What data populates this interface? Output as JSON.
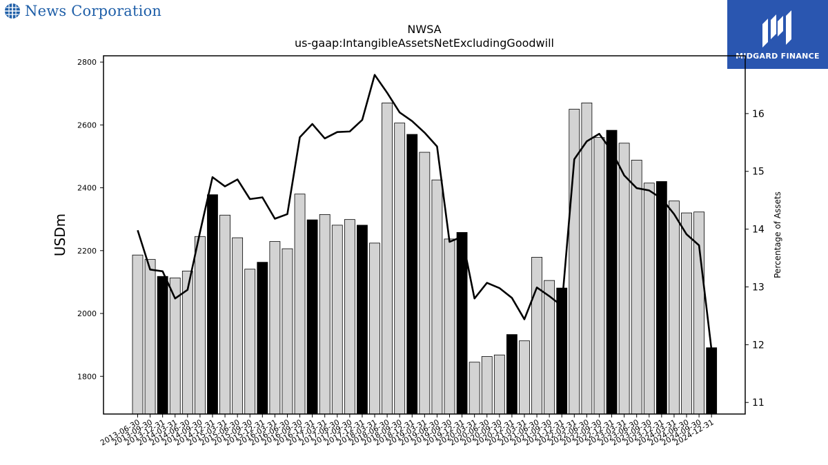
{
  "header": {
    "company_logo_text": "News Corporation",
    "brand_logo_text": "MIDGARD FINANCE"
  },
  "colors": {
    "bar_default": "#d3d3d3",
    "bar_q4": "#000000",
    "line": "#000000",
    "logo_blue": "#1f5fa8",
    "brand_bg": "#2a56b0"
  },
  "chart_data": {
    "type": "bar",
    "title": "NWSA",
    "subtitle": "us-gaap:IntangibleAssetsNetExcludingGoodwill",
    "ylabel": "USDm",
    "y2label": "Percentage of Assets",
    "ylim": [
      1680,
      2820
    ],
    "y2lim": [
      10.8,
      17.0
    ],
    "yticks": [
      1800,
      2000,
      2200,
      2400,
      2600,
      2800
    ],
    "y2ticks": [
      11,
      12,
      13,
      14,
      15,
      16
    ],
    "categories": [
      "2013-06-30",
      "2013-09-30",
      "2013-12-31",
      "2014-03-31",
      "2014-06-30",
      "2014-09-30",
      "2014-12-31",
      "2015-03-31",
      "2015-06-30",
      "2015-09-30",
      "2015-12-31",
      "2016-03-31",
      "2016-06-30",
      "2016-09-30",
      "2016-12-31",
      "2017-03-31",
      "2017-06-30",
      "2017-09-30",
      "2017-12-31",
      "2018-03-31",
      "2018-06-30",
      "2018-09-30",
      "2018-12-31",
      "2019-03-31",
      "2019-06-30",
      "2019-09-30",
      "2019-12-31",
      "2020-03-31",
      "2020-06-30",
      "2020-09-30",
      "2020-12-31",
      "2021-03-31",
      "2021-06-30",
      "2021-09-30",
      "2021-12-31",
      "2022-03-31",
      "2022-06-30",
      "2022-09-30",
      "2022-12-31",
      "2023-03-31",
      "2023-06-30",
      "2023-09-30",
      "2023-12-31",
      "2024-03-31",
      "2024-06-30",
      "2024-09-30",
      "2024-12-31"
    ],
    "series": [
      {
        "type": "bar",
        "values": [
          2186,
          2172,
          2118,
          2113,
          2135,
          2245,
          2378,
          2313,
          2241,
          2141,
          2163,
          2229,
          2206,
          2380,
          2298,
          2315,
          2281,
          2299,
          2281,
          2224,
          2670,
          2606,
          2570,
          2513,
          2425,
          2237,
          2258,
          1845,
          1863,
          1868,
          1933,
          1913,
          2179,
          2105,
          2081,
          2650,
          2670,
          2560,
          2583,
          2542,
          2488,
          2415,
          2420,
          2358,
          2320,
          2323,
          1891
        ],
        "highlight": [
          false,
          false,
          true,
          false,
          false,
          false,
          true,
          false,
          false,
          false,
          true,
          false,
          false,
          false,
          true,
          false,
          false,
          false,
          true,
          false,
          false,
          false,
          true,
          false,
          false,
          false,
          true,
          false,
          false,
          false,
          true,
          false,
          false,
          false,
          true,
          false,
          false,
          false,
          true,
          false,
          false,
          false,
          true,
          false,
          false,
          false,
          true
        ]
      },
      {
        "type": "line",
        "axis": "right",
        "values": [
          13.98,
          13.3,
          13.27,
          12.8,
          12.95,
          13.95,
          14.9,
          14.74,
          14.86,
          14.52,
          14.55,
          14.18,
          14.26,
          15.59,
          15.82,
          15.57,
          15.68,
          15.69,
          15.89,
          16.67,
          16.36,
          16.02,
          15.87,
          15.67,
          15.43,
          13.78,
          13.87,
          12.8,
          13.07,
          12.98,
          12.81,
          12.44,
          12.99,
          12.84,
          12.67,
          15.21,
          15.52,
          15.65,
          15.35,
          14.93,
          14.71,
          14.67,
          14.53,
          14.26,
          13.91,
          13.72,
          11.91
        ]
      }
    ]
  }
}
